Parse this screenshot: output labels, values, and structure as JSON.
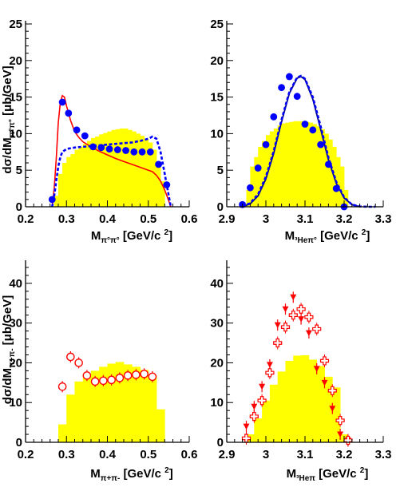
{
  "y_title_top": "dσ/dM",
  "y_title_top_sub": "π°π°",
  "y_title_top_unit": " [μb/GeV]",
  "y_title_bottom": "dσ/dM",
  "y_title_bottom_sub": "π+π-",
  "y_title_bottom_unit": " [μb/GeV]",
  "colors": {
    "histogram": "#ffff00",
    "curve_solid_red": "#ff0000",
    "curve_dashed_blue": "#0000ff",
    "curve_solid_navy": "#000080",
    "points_blue": "#0000ff",
    "points_red": "#ff0000"
  },
  "chart_data": [
    {
      "id": "top-left",
      "type": "bar",
      "xlabel_main": "M",
      "xlabel_sub": "π°π°",
      "xlabel_unit": " [GeV/c ",
      "xlabel_exp": "2",
      "xlabel_close": "]",
      "xlim": [
        0.2,
        0.6
      ],
      "ylim": [
        0,
        25
      ],
      "xticks": [
        "0.2",
        "0.3",
        "0.4",
        "0.5",
        "0.6"
      ],
      "xtick_values": [
        0.2,
        0.3,
        0.4,
        0.5,
        0.6
      ],
      "yticks": [
        "0",
        "5",
        "10",
        "15",
        "20",
        "25"
      ],
      "ytick_values": [
        0,
        5,
        10,
        15,
        20,
        25
      ],
      "histogram": {
        "edges": [
          0.27,
          0.28,
          0.29,
          0.3,
          0.31,
          0.32,
          0.33,
          0.34,
          0.35,
          0.36,
          0.37,
          0.38,
          0.39,
          0.4,
          0.41,
          0.42,
          0.43,
          0.44,
          0.45,
          0.46,
          0.47,
          0.48,
          0.49,
          0.5,
          0.51,
          0.52,
          0.53,
          0.54
        ],
        "values": [
          1.5,
          4.5,
          6.0,
          6.8,
          7.2,
          7.8,
          8.2,
          8.6,
          9.0,
          9.4,
          9.6,
          9.9,
          10.1,
          10.3,
          10.5,
          10.6,
          10.7,
          10.7,
          10.5,
          10.3,
          10.0,
          9.7,
          9.3,
          8.8,
          7.8,
          6.0,
          3.5
        ]
      },
      "curves": [
        {
          "style": "solid-red",
          "x": [
            0.265,
            0.27,
            0.275,
            0.28,
            0.285,
            0.29,
            0.295,
            0.3,
            0.31,
            0.32,
            0.33,
            0.34,
            0.36,
            0.38,
            0.4,
            0.42,
            0.44,
            0.46,
            0.48,
            0.5,
            0.51,
            0.52,
            0.53,
            0.54,
            0.55,
            0.555
          ],
          "y": [
            0,
            2.5,
            6.5,
            11.5,
            14.3,
            15.2,
            15.0,
            13.8,
            11.8,
            10.3,
            9.5,
            8.9,
            8.2,
            7.6,
            7.1,
            6.6,
            6.2,
            5.8,
            5.4,
            5.0,
            4.8,
            4.3,
            3.5,
            2.3,
            0.8,
            0
          ]
        },
        {
          "style": "dashed-blue",
          "x": [
            0.265,
            0.27,
            0.275,
            0.28,
            0.285,
            0.29,
            0.3,
            0.32,
            0.34,
            0.36,
            0.38,
            0.4,
            0.42,
            0.44,
            0.46,
            0.48,
            0.5,
            0.51,
            0.52,
            0.53,
            0.54,
            0.55,
            0.555
          ],
          "y": [
            0,
            1.5,
            3.5,
            5.5,
            6.8,
            7.5,
            7.9,
            8.1,
            8.2,
            8.3,
            8.4,
            8.5,
            8.6,
            8.7,
            8.8,
            9.0,
            9.3,
            9.6,
            9.3,
            7.5,
            4.5,
            1.5,
            0
          ]
        }
      ],
      "points": {
        "style": "filled-circle-blue",
        "x": [
          0.265,
          0.29,
          0.305,
          0.325,
          0.345,
          0.365,
          0.385,
          0.405,
          0.425,
          0.445,
          0.465,
          0.485,
          0.505,
          0.525,
          0.545
        ],
        "y": [
          1.0,
          14.3,
          12.8,
          10.5,
          9.7,
          8.2,
          8.1,
          7.9,
          7.8,
          7.7,
          7.5,
          7.5,
          7.5,
          5.8,
          3.0
        ]
      }
    },
    {
      "id": "top-right",
      "type": "bar",
      "xlabel_main": "M",
      "xlabel_sub": "³Heπ°",
      "xlabel_unit": " [GeV/c ",
      "xlabel_exp": "2",
      "xlabel_close": "]",
      "xlim": [
        2.9,
        3.3
      ],
      "ylim": [
        0,
        25
      ],
      "xticks": [
        "2.9",
        "3",
        "3.1",
        "3.2",
        "3.3"
      ],
      "xtick_values": [
        2.9,
        3.0,
        3.1,
        3.2,
        3.3
      ],
      "yticks": [
        "0",
        "5",
        "10",
        "15",
        "20",
        "25"
      ],
      "ytick_values": [
        0,
        5,
        10,
        15,
        20,
        25
      ],
      "histogram": {
        "edges": [
          2.94,
          2.95,
          2.96,
          2.97,
          2.98,
          2.99,
          3.0,
          3.01,
          3.02,
          3.03,
          3.04,
          3.05,
          3.06,
          3.07,
          3.08,
          3.09,
          3.1,
          3.11,
          3.12,
          3.13,
          3.14,
          3.15,
          3.16,
          3.17,
          3.18,
          3.19,
          3.2,
          3.21
        ],
        "values": [
          0.4,
          2.3,
          5.5,
          6.8,
          8.2,
          9.0,
          9.8,
          10.3,
          10.7,
          11.1,
          11.4,
          11.5,
          11.6,
          11.7,
          11.7,
          11.7,
          11.6,
          11.5,
          11.3,
          11.0,
          10.6,
          10.0,
          9.2,
          8.2,
          6.8,
          5.5,
          2.3
        ]
      },
      "curves": [
        {
          "style": "solid-navy",
          "x": [
            2.94,
            2.96,
            2.98,
            3.0,
            3.02,
            3.04,
            3.06,
            3.08,
            3.09,
            3.1,
            3.12,
            3.14,
            3.16,
            3.18,
            3.2,
            3.22,
            3.24
          ],
          "y": [
            0,
            0.4,
            1.5,
            3.8,
            7.3,
            11.6,
            15.5,
            17.6,
            17.8,
            17.4,
            14.7,
            10.6,
            6.4,
            3.2,
            1.2,
            0.3,
            0
          ]
        },
        {
          "style": "dashed-blue",
          "x": [
            2.94,
            2.96,
            2.98,
            3.0,
            3.02,
            3.04,
            3.06,
            3.08,
            3.09,
            3.1,
            3.12,
            3.14,
            3.16,
            3.18,
            3.2,
            3.22,
            3.24,
            3.26,
            3.28
          ],
          "y": [
            0,
            0.5,
            1.7,
            4.1,
            7.6,
            11.9,
            15.7,
            17.7,
            17.9,
            17.5,
            15.0,
            11.0,
            6.7,
            3.4,
            1.3,
            0.3,
            0.05,
            0,
            0
          ]
        }
      ],
      "points": {
        "style": "filled-circle-blue",
        "x": [
          2.94,
          2.96,
          2.98,
          3.0,
          3.02,
          3.04,
          3.06,
          3.08,
          3.1,
          3.12,
          3.14,
          3.16,
          3.18,
          3.2
        ],
        "y": [
          0.3,
          2.6,
          5.3,
          8.5,
          12.3,
          16.3,
          17.8,
          15.1,
          11.3,
          10.5,
          8.5,
          5.8,
          2.5,
          0
        ]
      }
    },
    {
      "id": "bottom-left",
      "type": "bar",
      "xlabel_main": "M",
      "xlabel_sub": "π+π-",
      "xlabel_unit": " [GeV/c ",
      "xlabel_exp": "2",
      "xlabel_close": "]",
      "xlim": [
        0.2,
        0.6
      ],
      "ylim": [
        0,
        45
      ],
      "xticks": [
        "0.2",
        "0.3",
        "0.4",
        "0.5",
        "0.6"
      ],
      "xtick_values": [
        0.2,
        0.3,
        0.4,
        0.5,
        0.6
      ],
      "yticks": [
        "0",
        "10",
        "20",
        "30",
        "40"
      ],
      "ytick_values": [
        0,
        10,
        20,
        30,
        40
      ],
      "histogram": {
        "edges": [
          0.28,
          0.3,
          0.32,
          0.34,
          0.36,
          0.38,
          0.4,
          0.42,
          0.44,
          0.46,
          0.48,
          0.5,
          0.52,
          0.54
        ],
        "values": [
          4.5,
          12.0,
          15.3,
          17.2,
          18.0,
          19.0,
          19.8,
          20.2,
          19.6,
          19.0,
          18.2,
          16.8,
          8.3
        ]
      },
      "curves": [],
      "points": {
        "style": "open-circle-red",
        "x": [
          0.29,
          0.31,
          0.33,
          0.35,
          0.37,
          0.39,
          0.41,
          0.43,
          0.45,
          0.47,
          0.49,
          0.51
        ],
        "y": [
          14.0,
          21.5,
          20.0,
          16.8,
          15.3,
          15.5,
          15.7,
          16.2,
          16.8,
          17.0,
          17.2,
          16.5
        ]
      }
    },
    {
      "id": "bottom-right",
      "type": "bar",
      "xlabel_main": "M",
      "xlabel_sub": "³Heπ",
      "xlabel_unit": " [GeV/c ",
      "xlabel_exp": "2",
      "xlabel_close": "]",
      "xlim": [
        2.9,
        3.3
      ],
      "ylim": [
        0,
        45
      ],
      "xticks": [
        "2.9",
        "3",
        "3.1",
        "3.2",
        "3.3"
      ],
      "xtick_values": [
        2.9,
        3.0,
        3.1,
        3.2,
        3.3
      ],
      "yticks": [
        "0",
        "10",
        "20",
        "30",
        "40"
      ],
      "ytick_values": [
        0,
        10,
        20,
        30,
        40
      ],
      "histogram": {
        "edges": [
          2.95,
          2.97,
          2.99,
          3.01,
          3.03,
          3.05,
          3.07,
          3.09,
          3.11,
          3.13,
          3.15,
          3.17,
          3.19,
          3.21
        ],
        "values": [
          2.0,
          6.0,
          10.5,
          14.5,
          17.8,
          20.5,
          21.8,
          21.9,
          20.8,
          19.2,
          16.5,
          13.8,
          2.0
        ]
      },
      "curves": [],
      "points": {
        "style": "triangle-red",
        "x": [
          2.95,
          2.97,
          2.99,
          3.01,
          3.03,
          3.05,
          3.07,
          3.09,
          3.11,
          3.13,
          3.15,
          3.17,
          3.19,
          3.21
        ],
        "y": [
          4.0,
          9.0,
          14.0,
          19.5,
          29.5,
          33.5,
          36.5,
          31.0,
          27.5,
          18.5,
          15.0,
          8.5,
          2.0,
          0.5
        ]
      },
      "points_secondary": {
        "style": "open-cross-red",
        "x": [
          2.95,
          2.97,
          2.99,
          3.01,
          3.03,
          3.05,
          3.07,
          3.09,
          3.11,
          3.13,
          3.15,
          3.17,
          3.19,
          3.21
        ],
        "y": [
          1.0,
          6.5,
          10.5,
          17.5,
          25.0,
          29.0,
          32.0,
          33.5,
          31.5,
          28.5,
          20.5,
          13.0,
          5.5,
          0.5
        ]
      }
    }
  ]
}
